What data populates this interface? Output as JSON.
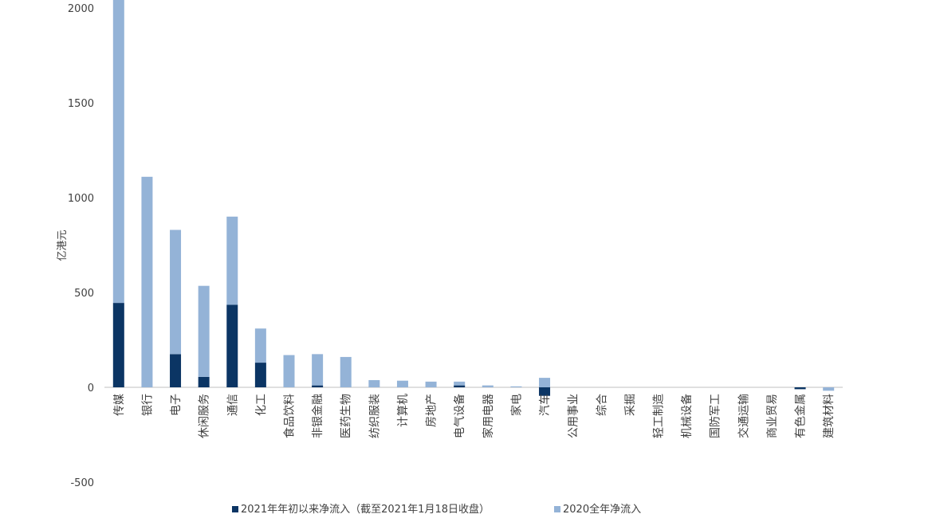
{
  "chart_data": {
    "type": "bar",
    "stacked": true,
    "title": "",
    "xlabel": "",
    "ylabel": "亿港元",
    "ylim": [
      -500,
      2000
    ],
    "yticks": [
      -500,
      0,
      500,
      1000,
      1500,
      2000
    ],
    "grid": false,
    "legend_position": "bottom",
    "categories": [
      "传媒",
      "银行",
      "电子",
      "休闲服务",
      "通信",
      "化工",
      "食品饮料",
      "非银金融",
      "医药生物",
      "纺织服装",
      "计算机",
      "房地产",
      "电气设备",
      "家用电器",
      "家电",
      "汽车",
      "公用事业",
      "综合",
      "采掘",
      "轻工制造",
      "机械设备",
      "国防军工",
      "交通运输",
      "商业贸易",
      "有色金属",
      "建筑材料"
    ],
    "series": [
      {
        "name": "2021年年初以来净流入（截至2021年1月18日收盘）",
        "color": "#0b3564",
        "values": [
          445,
          0,
          175,
          55,
          435,
          130,
          0,
          10,
          0,
          0,
          0,
          0,
          10,
          0,
          0,
          -45,
          0,
          0,
          0,
          0,
          0,
          0,
          0,
          0,
          -10,
          0
        ]
      },
      {
        "name": "2020全年净流入",
        "color": "#94b3d7",
        "values": [
          1775,
          1110,
          655,
          480,
          465,
          180,
          170,
          165,
          160,
          38,
          35,
          30,
          20,
          10,
          5,
          50,
          0,
          0,
          0,
          0,
          0,
          0,
          0,
          0,
          0,
          -18
        ]
      }
    ]
  }
}
